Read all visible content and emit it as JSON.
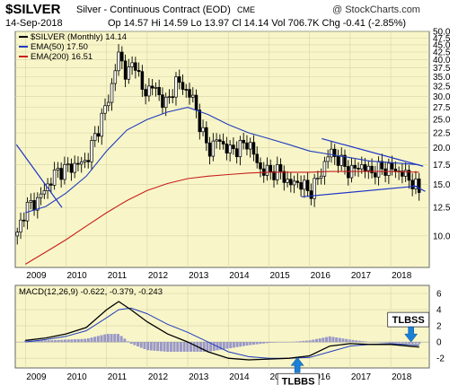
{
  "header": {
    "symbol": "$SILVER",
    "name": "Silver - Continuous Contract (EOD)",
    "exchange": "CME",
    "copyright": "@ StockCharts.com",
    "date": "14-Sep-2018",
    "ohlc": "Op 14.57  Hi 14.59  Lo 13.97  Cl 14.14  Vol 706.7K  Chg -0.41 (-2.85%)"
  },
  "colors": {
    "panel_bg": "#f8f6c8",
    "candle": "#000000",
    "ema50": "#1f3bbf",
    "ema200": "#c81e1e",
    "trendline": "#2035c8",
    "histogram": "#9a98c8",
    "signal": "#1f3bbf",
    "callout": "#1a7fd6"
  },
  "chart_data": [
    {
      "type": "line",
      "panel": "price",
      "title": "$SILVER (Monthly) 14.14",
      "legend": [
        "EMA(50) 17.50",
        "EMA(200) 16.51"
      ],
      "legend_position": "top-left",
      "scale": "log",
      "ylim": [
        7.8,
        50
      ],
      "xlim": [
        2008.75,
        2018.95
      ],
      "y_ticks": [
        10.0,
        12.5,
        15.0,
        17.5,
        20.0,
        22.5,
        25.0,
        27.5,
        30.0,
        32.5,
        35.0,
        37.5,
        40.0,
        42.5,
        45.0,
        47.5,
        50.0
      ],
      "x_ticks": [
        "2009",
        "2010",
        "2011",
        "2012",
        "2013",
        "2014",
        "2015",
        "2016",
        "2017",
        "2018"
      ],
      "grid": true,
      "series": [
        {
          "name": "$SILVER (Monthly) 14.14",
          "kind": "close",
          "x": [
            2008.8,
            2009.0,
            2009.25,
            2009.5,
            2009.75,
            2010.0,
            2010.25,
            2010.5,
            2010.75,
            2011.0,
            2011.15,
            2011.3,
            2011.5,
            2011.7,
            2011.9,
            2012.1,
            2012.3,
            2012.5,
            2012.7,
            2012.9,
            2013.1,
            2013.3,
            2013.5,
            2013.75,
            2014.0,
            2014.25,
            2014.5,
            2014.75,
            2015.0,
            2015.25,
            2015.5,
            2015.75,
            2016.0,
            2016.25,
            2016.5,
            2016.75,
            2017.0,
            2017.25,
            2017.5,
            2017.75,
            2018.0,
            2018.25,
            2018.5,
            2018.7
          ],
          "values": [
            10.0,
            12.5,
            13.0,
            14.5,
            16.5,
            17.0,
            17.5,
            18.0,
            22.5,
            28.0,
            33.5,
            42.0,
            35.0,
            40.0,
            30.0,
            33.0,
            30.0,
            28.0,
            34.0,
            32.0,
            30.0,
            24.0,
            19.5,
            21.5,
            19.5,
            20.0,
            21.0,
            17.0,
            16.5,
            16.7,
            15.0,
            15.3,
            14.0,
            16.0,
            19.5,
            18.0,
            16.5,
            17.5,
            16.5,
            17.0,
            17.0,
            16.5,
            15.5,
            14.14
          ]
        },
        {
          "name": "EMA(50) 17.50",
          "x": [
            2009.0,
            2009.5,
            2010.0,
            2010.5,
            2011.0,
            2011.5,
            2012.0,
            2012.5,
            2013.0,
            2013.5,
            2014.0,
            2014.5,
            2015.0,
            2015.5,
            2016.0,
            2016.5,
            2017.0,
            2017.5,
            2018.0,
            2018.7
          ],
          "values": [
            12.0,
            12.6,
            14.0,
            16.0,
            19.5,
            23.0,
            25.0,
            26.5,
            27.5,
            26.0,
            24.0,
            22.5,
            21.5,
            20.5,
            19.5,
            19.0,
            18.5,
            18.0,
            17.8,
            17.5
          ]
        },
        {
          "name": "EMA(200) 16.51",
          "x": [
            2009.0,
            2009.5,
            2010.0,
            2010.5,
            2011.0,
            2011.5,
            2012.0,
            2012.5,
            2013.0,
            2013.5,
            2014.0,
            2014.5,
            2015.0,
            2015.5,
            2016.0,
            2016.5,
            2017.0,
            2017.5,
            2018.0,
            2018.7
          ],
          "values": [
            8.0,
            8.8,
            9.7,
            10.8,
            12.0,
            13.2,
            14.3,
            15.1,
            15.7,
            16.0,
            16.2,
            16.4,
            16.5,
            16.5,
            16.5,
            16.6,
            16.6,
            16.6,
            16.6,
            16.51
          ]
        }
      ]
    },
    {
      "type": "line",
      "panel": "macd",
      "title": "MACD(12,26,9) -0.622, -0.379, -0.243",
      "ylim": [
        -3.2,
        7
      ],
      "y_ticks": [
        -2,
        0,
        2,
        4,
        6
      ],
      "x_ticks": [
        "2009",
        "2010",
        "2011",
        "2012",
        "2013",
        "2014",
        "2015",
        "2016",
        "2017",
        "2018"
      ],
      "annotations": [
        {
          "text": "TLBSS",
          "x": 2018.5,
          "y": 0
        },
        {
          "text": "TLBBS",
          "x": 2015.7,
          "y": -1.9
        }
      ],
      "series": [
        {
          "name": "MACD",
          "x": [
            2009.0,
            2009.5,
            2010.0,
            2010.5,
            2011.0,
            2011.3,
            2011.6,
            2012.0,
            2012.5,
            2013.0,
            2013.5,
            2014.0,
            2014.5,
            2015.0,
            2015.5,
            2016.0,
            2016.5,
            2017.0,
            2017.5,
            2018.0,
            2018.7
          ],
          "values": [
            0.2,
            0.5,
            1.0,
            1.8,
            4.0,
            5.0,
            4.0,
            2.5,
            1.0,
            0.0,
            -1.2,
            -2.0,
            -2.2,
            -2.1,
            -2.0,
            -1.7,
            -0.5,
            -0.2,
            -0.3,
            -0.3,
            -0.622
          ]
        },
        {
          "name": "Signal",
          "x": [
            2009.0,
            2009.5,
            2010.0,
            2010.5,
            2011.0,
            2011.3,
            2011.6,
            2012.0,
            2012.5,
            2013.0,
            2013.5,
            2014.0,
            2014.5,
            2015.0,
            2015.5,
            2016.0,
            2016.5,
            2017.0,
            2017.5,
            2018.0,
            2018.7
          ],
          "values": [
            0.0,
            0.3,
            0.7,
            1.4,
            3.0,
            4.0,
            4.2,
            3.5,
            2.2,
            1.2,
            0.0,
            -1.2,
            -1.8,
            -2.0,
            -2.0,
            -1.9,
            -1.2,
            -0.5,
            -0.3,
            -0.2,
            -0.379
          ]
        },
        {
          "name": "Histogram",
          "x": [
            2009.0,
            2009.5,
            2010.0,
            2010.5,
            2011.0,
            2011.3,
            2011.6,
            2012.0,
            2012.5,
            2013.0,
            2013.5,
            2014.0,
            2014.5,
            2015.0,
            2015.5,
            2016.0,
            2016.5,
            2017.0,
            2017.5,
            2018.0,
            2018.7
          ],
          "values": [
            0.2,
            0.2,
            0.3,
            0.4,
            1.0,
            1.0,
            -0.2,
            -1.0,
            -1.2,
            -1.2,
            -1.2,
            -0.8,
            -0.4,
            -0.1,
            0.0,
            0.2,
            0.7,
            0.3,
            0.0,
            -0.1,
            -0.243
          ]
        }
      ]
    }
  ]
}
